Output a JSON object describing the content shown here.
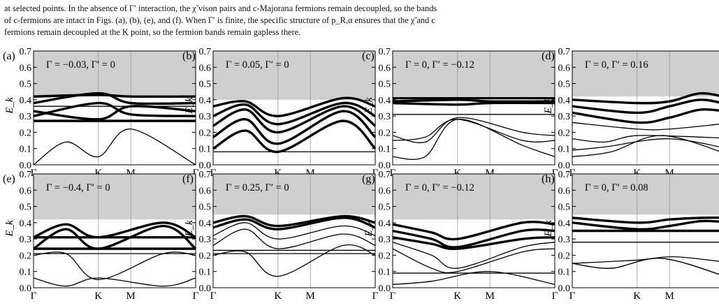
{
  "text": {
    "lines": [
      "at selected points. In the absence of Γ′ interaction, the χ̃ vison pairs and c-Majorana fermions remain decoupled, so the bands",
      "of c-fermions are intact in Figs. (a), (b), (e), and (f). When Γ′ is finite, the specific structure of p_R,α ensures that the χ̃ and c",
      "fermions remain decoupled at the K point, so the fermion bands remain gapless there."
    ]
  },
  "figure": {
    "ylabel": "E_k",
    "x_ticks": [
      "Γ",
      "K",
      "M",
      "Γ"
    ],
    "y_ticks": [
      "0.0",
      "0.1",
      "0.2",
      "0.3",
      "0.4",
      "0.5",
      "0.6",
      "0.7"
    ],
    "colors": {
      "shade": "#cfcfcf",
      "line": "#000000",
      "vline": "#9a9a9a"
    }
  },
  "chart_data": [
    {
      "type": "line",
      "panel": "(a)",
      "annotation": "Γ = −0.03,  Γ′ = 0",
      "xlabel": "",
      "ylabel": "E_k",
      "ylim": [
        0,
        0.7
      ],
      "x": [
        0,
        1,
        1.5,
        2.5
      ],
      "shade_above": 0.42,
      "bands": [
        {
          "v": [
            0.42,
            0.43,
            0.42,
            0.42
          ],
          "thick": true
        },
        {
          "v": [
            0.38,
            0.44,
            0.38,
            0.38
          ],
          "thick": true
        },
        {
          "v": [
            0.33,
            0.28,
            0.36,
            0.33
          ],
          "thick": true
        },
        {
          "v": [
            0.3,
            0.38,
            0.31,
            0.3
          ],
          "thick": true
        },
        {
          "v": [
            0.27,
            0.27,
            0.27,
            0.27
          ],
          "thick": true
        },
        {
          "v": [
            0.36,
            0.36,
            0.36,
            0.36
          ],
          "thick": false
        },
        {
          "v": [
            0.0,
            0.14,
            0.05,
            0.22,
            0.0
          ],
          "xs": [
            0,
            0.5,
            1,
            1.5,
            2.5
          ],
          "thick": false
        }
      ]
    },
    {
      "type": "line",
      "panel": "(b)",
      "annotation": "Γ = 0.05,  Γ′ = 0",
      "xlabel": "",
      "ylabel": "E_k",
      "ylim": [
        0,
        0.7
      ],
      "x": [
        0,
        1,
        1.5,
        2.5
      ],
      "shade_above": 0.4,
      "bands": [
        {
          "v": [
            0.36,
            0.39,
            0.3,
            0.41,
            0.36
          ],
          "xs": [
            0,
            0.5,
            1,
            2,
            2.5
          ],
          "thick": true
        },
        {
          "v": [
            0.3,
            0.37,
            0.25,
            0.38,
            0.3
          ],
          "xs": [
            0,
            0.5,
            1,
            2,
            2.5
          ],
          "thick": true
        },
        {
          "v": [
            0.24,
            0.34,
            0.2,
            0.36,
            0.24
          ],
          "xs": [
            0,
            0.5,
            1,
            2,
            2.5
          ],
          "thick": true
        },
        {
          "v": [
            0.17,
            0.28,
            0.13,
            0.33,
            0.17
          ],
          "xs": [
            0,
            0.5,
            1,
            2,
            2.5
          ],
          "thick": true
        },
        {
          "v": [
            0.1,
            0.21,
            0.08,
            0.27,
            0.1
          ],
          "xs": [
            0,
            0.5,
            1,
            2,
            2.5
          ],
          "thick": true
        },
        {
          "v": [
            0.08,
            0.08,
            0.08,
            0.08
          ],
          "thick": false
        }
      ]
    },
    {
      "type": "line",
      "panel": "(c)",
      "annotation": "Γ = 0,  Γ′ = −0.12",
      "xlabel": "",
      "ylabel": "E_k",
      "ylim": [
        0,
        0.7
      ],
      "x": [
        0,
        1,
        1.5,
        2.5
      ],
      "shade_above": 0.42,
      "bands": [
        {
          "v": [
            0.41,
            0.41,
            0.41,
            0.41
          ],
          "thick": true
        },
        {
          "v": [
            0.39,
            0.4,
            0.39,
            0.39
          ],
          "thick": true
        },
        {
          "v": [
            0.38,
            0.37,
            0.38,
            0.38
          ],
          "thick": true
        },
        {
          "v": [
            0.31,
            0.31,
            0.31,
            0.31
          ],
          "thick": false
        },
        {
          "v": [
            0.18,
            0.14,
            0.29,
            0.2,
            0.18
          ],
          "xs": [
            0,
            0.5,
            1,
            2,
            2.5
          ],
          "thick": false
        },
        {
          "v": [
            0.15,
            0.17,
            0.28,
            0.15,
            0.15
          ],
          "xs": [
            0,
            0.5,
            1,
            2,
            2.5
          ],
          "thick": false
        },
        {
          "v": [
            0.05,
            0.05,
            0.28,
            0.12,
            0.05
          ],
          "xs": [
            0,
            0.5,
            1,
            2,
            2.5
          ],
          "thick": false
        }
      ]
    },
    {
      "type": "line",
      "panel": "(d)",
      "annotation": "Γ = 0,  Γ′ = 0.16",
      "xlabel": "",
      "ylabel": "E_k",
      "ylim": [
        0,
        0.7
      ],
      "x": [
        0,
        1,
        1.5,
        2.5
      ],
      "shade_above": 0.42,
      "bands": [
        {
          "v": [
            0.4,
            0.38,
            0.39,
            0.44,
            0.4
          ],
          "xs": [
            0,
            1,
            1.5,
            2,
            2.5
          ],
          "thick": true
        },
        {
          "v": [
            0.36,
            0.32,
            0.36,
            0.4,
            0.36
          ],
          "xs": [
            0,
            1,
            1.5,
            2,
            2.5
          ],
          "thick": true
        },
        {
          "v": [
            0.32,
            0.26,
            0.29,
            0.34,
            0.32
          ],
          "xs": [
            0,
            1,
            1.5,
            2,
            2.5
          ],
          "thick": true
        },
        {
          "v": [
            0.26,
            0.22,
            0.22,
            0.26
          ],
          "thick": false
        },
        {
          "v": [
            0.16,
            0.14,
            0.18,
            0.17,
            0.16
          ],
          "xs": [
            0,
            0.5,
            1,
            2,
            2.5
          ],
          "thick": false
        },
        {
          "v": [
            0.09,
            0.11,
            0.16,
            0.09
          ],
          "xs": [
            0,
            0.5,
            1.5,
            2.5
          ],
          "thick": false
        },
        {
          "v": [
            0.05,
            0.08,
            0.18,
            0.05
          ],
          "xs": [
            0,
            0.6,
            1.4,
            2.5
          ],
          "thick": false
        }
      ]
    },
    {
      "type": "line",
      "panel": "(e)",
      "annotation": "Γ = −0.4,  Γ′ = 0",
      "xlabel": "",
      "ylabel": "E_k",
      "ylim": [
        0,
        0.7
      ],
      "x": [
        0,
        1,
        1.5,
        2.5
      ],
      "shade_above": 0.42,
      "bands": [
        {
          "v": [
            0.31,
            0.39,
            0.31,
            0.4,
            0.31
          ],
          "xs": [
            0,
            0.5,
            1,
            2,
            2.5
          ],
          "thick": true
        },
        {
          "v": [
            0.31,
            0.31,
            0.31,
            0.31
          ],
          "thick": true
        },
        {
          "v": [
            0.24,
            0.36,
            0.24,
            0.38,
            0.24
          ],
          "xs": [
            0,
            0.5,
            1,
            2,
            2.5
          ],
          "thick": true
        },
        {
          "v": [
            0.24,
            0.24,
            0.24,
            0.24
          ],
          "thick": true
        },
        {
          "v": [
            0.21,
            0.21,
            0.21,
            0.21
          ],
          "thick": false
        },
        {
          "v": [
            0.2,
            0.21,
            0.05,
            0.21,
            0.2
          ],
          "xs": [
            0,
            0.5,
            1,
            2,
            2.5
          ],
          "thick": false
        },
        {
          "v": [
            0.06,
            0.01,
            0.06,
            0.01,
            0.06
          ],
          "xs": [
            0,
            0.5,
            1,
            2,
            2.5
          ],
          "thick": false
        }
      ]
    },
    {
      "type": "line",
      "panel": "(f)",
      "annotation": "Γ = 0.25,  Γ′ = 0",
      "xlabel": "",
      "ylabel": "E_k",
      "ylim": [
        0,
        0.7
      ],
      "x": [
        0,
        1,
        1.5,
        2.5
      ],
      "shade_above": 0.45,
      "bands": [
        {
          "v": [
            0.4,
            0.44,
            0.38,
            0.44,
            0.4
          ],
          "xs": [
            0,
            0.5,
            1,
            2,
            2.5
          ],
          "thick": true
        },
        {
          "v": [
            0.37,
            0.42,
            0.36,
            0.43,
            0.37
          ],
          "xs": [
            0,
            0.5,
            1,
            2,
            2.5
          ],
          "thick": true
        },
        {
          "v": [
            0.32,
            0.4,
            0.3,
            0.38,
            0.32
          ],
          "xs": [
            0,
            0.5,
            1,
            2,
            2.5
          ],
          "thick": false
        },
        {
          "v": [
            0.26,
            0.36,
            0.24,
            0.33,
            0.26
          ],
          "xs": [
            0,
            0.5,
            1,
            2,
            2.5
          ],
          "thick": false
        },
        {
          "v": [
            0.23,
            0.23,
            0.23,
            0.23
          ],
          "thick": false
        },
        {
          "v": [
            0.21,
            0.21,
            0.21,
            0.21
          ],
          "thick": false
        },
        {
          "v": [
            0.2,
            0.22,
            0.07,
            0.26,
            0.2
          ],
          "xs": [
            0,
            0.5,
            1,
            2,
            2.5
          ],
          "thick": false
        }
      ]
    },
    {
      "type": "line",
      "panel": "(g)",
      "annotation": "Γ = 0,  Γ′ = −0.12",
      "xlabel": "",
      "ylabel": "E_k",
      "ylim": [
        0,
        0.7
      ],
      "x": [
        0,
        1,
        1.5,
        2.5
      ],
      "shade_above": 0.42,
      "bands": [
        {
          "v": [
            0.39,
            0.34,
            0.3,
            0.4,
            0.39
          ],
          "xs": [
            0,
            0.6,
            1,
            2,
            2.5
          ],
          "thick": true
        },
        {
          "v": [
            0.35,
            0.3,
            0.25,
            0.35,
            0.35
          ],
          "xs": [
            0,
            0.6,
            1,
            2,
            2.5
          ],
          "thick": true
        },
        {
          "v": [
            0.31,
            0.27,
            0.24,
            0.3,
            0.31
          ],
          "xs": [
            0,
            0.6,
            1,
            2,
            2.5
          ],
          "thick": true
        },
        {
          "v": [
            0.28,
            0.2,
            0.12,
            0.25,
            0.28
          ],
          "xs": [
            0,
            0.6,
            1,
            2,
            2.5
          ],
          "thick": false
        },
        {
          "v": [
            0.24,
            0.12,
            0.1,
            0.22,
            0.24
          ],
          "xs": [
            0,
            0.6,
            1,
            2,
            2.5
          ],
          "thick": false
        },
        {
          "v": [
            0.09,
            0.09,
            0.09,
            0.09
          ],
          "thick": false
        },
        {
          "v": [
            0.02,
            0.04,
            0.1,
            0.02
          ],
          "xs": [
            0,
            0.6,
            1.5,
            2.5
          ],
          "thick": false
        }
      ]
    },
    {
      "type": "line",
      "panel": "(h)",
      "annotation": "Γ = 0,  Γ′ = 0.08",
      "xlabel": "",
      "ylabel": "E_k",
      "ylim": [
        0,
        0.7
      ],
      "x": [
        0,
        1,
        1.5,
        2.5
      ],
      "shade_above": 0.45,
      "bands": [
        {
          "v": [
            0.43,
            0.4,
            0.42,
            0.43,
            0.43
          ],
          "xs": [
            0,
            1,
            1.5,
            2,
            2.5
          ],
          "thick": true
        },
        {
          "v": [
            0.4,
            0.36,
            0.38,
            0.41,
            0.4
          ],
          "xs": [
            0,
            1,
            1.5,
            2,
            2.5
          ],
          "thick": true
        },
        {
          "v": [
            0.35,
            0.35,
            0.35,
            0.35
          ],
          "thick": true
        },
        {
          "v": [
            0.28,
            0.28,
            0.28,
            0.28
          ],
          "thick": false
        },
        {
          "v": [
            0.15,
            0.17,
            0.19,
            0.15
          ],
          "xs": [
            0,
            1,
            1.6,
            2.5
          ],
          "thick": false
        },
        {
          "v": [
            0.15,
            0.12,
            0.18,
            0.05
          ],
          "xs": [
            0,
            0.6,
            1.4,
            2.5
          ],
          "thick": false
        },
        {
          "v": [
            0.15,
            0.12,
            0.18,
            0.05
          ],
          "xs": [
            0,
            0.6,
            1.4,
            2.5
          ],
          "thick": false
        }
      ]
    }
  ]
}
